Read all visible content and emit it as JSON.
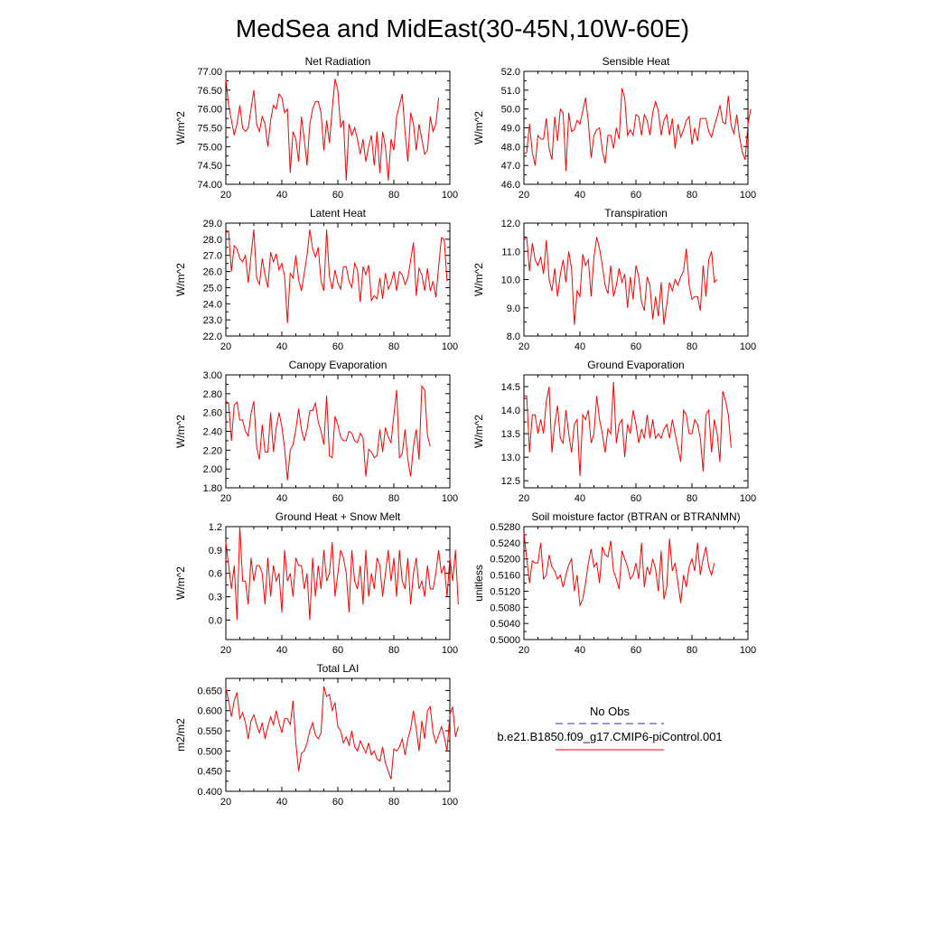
{
  "title": "MedSea and MidEast(30-45N,10W-60E)",
  "colors": {
    "series": "#ff0000",
    "obs": "#2b2bb0",
    "axis": "#000000"
  },
  "legend": {
    "obs_label": "No Obs",
    "model_label": "b.e21.B1850.f09_g17.CMIP6-piControl.001"
  },
  "chart_data": [
    {
      "type": "line",
      "title": "Net Radiation",
      "ylabel": "W/m^2",
      "xlim": [
        20,
        100
      ],
      "xticks": [
        20,
        40,
        60,
        80,
        100
      ],
      "ylim": [
        74.0,
        77.0
      ],
      "yticks": [
        "74.00",
        "74.50",
        "75.00",
        "75.50",
        "76.00",
        "76.50",
        "77.00"
      ],
      "x_start": 20,
      "values": [
        76.8,
        76.1,
        75.7,
        75.3,
        75.6,
        76.1,
        75.5,
        75.4,
        75.5,
        76.0,
        76.5,
        75.6,
        75.4,
        75.8,
        75.6,
        75.0,
        75.7,
        76.1,
        76.0,
        76.4,
        76.3,
        75.9,
        76.0,
        74.3,
        75.4,
        75.2,
        74.6,
        75.8,
        75.2,
        74.5,
        75.6,
        76.0,
        76.2,
        76.2,
        75.9,
        74.9,
        75.7,
        75.1,
        76.0,
        76.8,
        76.5,
        75.5,
        75.7,
        74.1,
        75.6,
        75.3,
        75.5,
        75.2,
        74.8,
        75.2,
        74.6,
        75.0,
        75.3,
        74.5,
        75.4,
        74.3,
        75.4,
        75.0,
        74.1,
        75.2,
        74.9,
        75.8,
        76.1,
        76.4,
        75.4,
        74.6,
        75.9,
        75.6,
        74.9,
        75.6,
        75.2,
        74.8,
        74.9,
        75.8,
        75.4,
        75.6,
        76.3
      ]
    },
    {
      "type": "line",
      "title": "Sensible Heat",
      "ylabel": "W/m^2",
      "xlim": [
        20,
        100
      ],
      "xticks": [
        20,
        40,
        60,
        80,
        100
      ],
      "ylim": [
        46.0,
        52.0
      ],
      "yticks": [
        "46.0",
        "47.0",
        "48.0",
        "49.0",
        "50.0",
        "51.0",
        "52.0"
      ],
      "x_start": 20,
      "values": [
        47.6,
        47.7,
        49.2,
        47.7,
        47.0,
        48.6,
        48.4,
        48.4,
        49.5,
        47.9,
        47.3,
        49.6,
        48.3,
        50.0,
        49.8,
        46.7,
        49.8,
        48.8,
        48.9,
        49.4,
        49.2,
        49.9,
        50.6,
        49.3,
        47.4,
        48.6,
        48.9,
        49.0,
        47.8,
        47.1,
        48.6,
        48.6,
        47.9,
        49.0,
        48.4,
        51.1,
        50.6,
        48.6,
        48.9,
        48.6,
        49.7,
        49.6,
        48.6,
        49.7,
        49.4,
        48.6,
        49.8,
        50.4,
        49.9,
        48.6,
        49.4,
        49.7,
        48.6,
        49.5,
        47.9,
        49.2,
        48.5,
        48.9,
        49.4,
        49.6,
        48.1,
        49.0,
        48.3,
        49.5,
        49.5,
        49.5,
        48.8,
        48.5,
        49.1,
        49.6,
        50.2,
        49.3,
        49.2,
        50.7,
        49.1,
        48.7,
        49.7,
        48.5,
        47.7,
        47.3,
        49.2,
        50.0
      ]
    },
    {
      "type": "line",
      "title": "Latent Heat",
      "ylabel": "W/m^2",
      "xlim": [
        20,
        100
      ],
      "xticks": [
        20,
        40,
        60,
        80,
        100
      ],
      "ylim": [
        22.0,
        29.0
      ],
      "yticks": [
        "22.0",
        "23.0",
        "24.0",
        "25.0",
        "26.0",
        "27.0",
        "28.0",
        "29.0"
      ],
      "x_start": 20,
      "values": [
        28.4,
        28.5,
        26.0,
        27.6,
        27.4,
        26.8,
        26.6,
        27.0,
        25.3,
        27.0,
        28.6,
        25.6,
        25.2,
        26.8,
        25.8,
        25.0,
        27.2,
        26.6,
        27.1,
        26.1,
        26.5,
        25.7,
        22.8,
        25.9,
        25.6,
        27.0,
        25.5,
        24.8,
        25.9,
        27.0,
        28.6,
        27.4,
        26.9,
        27.5,
        25.4,
        24.8,
        28.6,
        25.7,
        24.9,
        26.1,
        25.3,
        24.9,
        26.3,
        26.3,
        25.4,
        25.0,
        26.5,
        26.1,
        24.1,
        26.3,
        25.8,
        26.4,
        24.2,
        24.5,
        24.3,
        25.6,
        24.3,
        25.9,
        24.9,
        25.3,
        26.0,
        24.8,
        26.0,
        25.8,
        25.2,
        25.6,
        26.7,
        27.8,
        24.5,
        26.2,
        25.8,
        24.8,
        26.2,
        24.8,
        25.4,
        24.4,
        26.3,
        28.1,
        28.0,
        25.4
      ]
    },
    {
      "type": "line",
      "title": "Transpiration",
      "ylabel": "W/m^2",
      "xlim": [
        20,
        100
      ],
      "xticks": [
        20,
        40,
        60,
        80,
        100
      ],
      "ylim": [
        8.0,
        12.0
      ],
      "yticks": [
        "8.0",
        "9.0",
        "10.0",
        "11.0",
        "12.0"
      ],
      "x_start": 20,
      "values": [
        11.4,
        11.5,
        10.3,
        11.3,
        10.7,
        10.5,
        10.8,
        10.2,
        11.4,
        10.0,
        9.6,
        10.4,
        9.4,
        10.2,
        10.7,
        9.9,
        11.0,
        10.4,
        8.4,
        9.6,
        9.4,
        10.9,
        10.5,
        10.7,
        9.4,
        10.8,
        11.5,
        11.1,
        10.5,
        9.8,
        9.5,
        10.5,
        9.4,
        9.8,
        10.4,
        9.9,
        10.2,
        9.0,
        10.1,
        9.3,
        10.5,
        10.1,
        9.2,
        8.9,
        10.1,
        9.8,
        8.6,
        9.4,
        8.7,
        9.9,
        8.4,
        9.1,
        9.9,
        9.6,
        10.0,
        9.8,
        10.1,
        10.3,
        11.1,
        9.8,
        9.3,
        9.4,
        9.4,
        8.9,
        10.5,
        9.4,
        10.7,
        11.0,
        9.9,
        10.0
      ]
    },
    {
      "type": "line",
      "title": "Canopy Evaporation",
      "ylabel": "W/m^2",
      "xlim": [
        20,
        100
      ],
      "xticks": [
        20,
        40,
        60,
        80,
        100
      ],
      "ylim": [
        1.8,
        3.0
      ],
      "yticks": [
        "1.80",
        "2.00",
        "2.20",
        "2.40",
        "2.60",
        "2.80",
        "3.00"
      ],
      "x_start": 20,
      "values": [
        2.72,
        2.7,
        2.3,
        2.68,
        2.71,
        2.52,
        2.52,
        2.4,
        2.35,
        2.59,
        2.72,
        2.24,
        2.1,
        2.47,
        2.18,
        2.18,
        2.6,
        2.18,
        2.44,
        2.6,
        2.45,
        2.22,
        1.88,
        2.2,
        2.26,
        2.42,
        2.64,
        2.42,
        2.3,
        2.42,
        2.62,
        2.62,
        2.7,
        2.5,
        2.4,
        2.26,
        2.78,
        2.14,
        2.12,
        2.56,
        2.47,
        2.34,
        2.3,
        2.3,
        2.4,
        2.38,
        2.3,
        2.28,
        2.38,
        2.33,
        1.92,
        2.21,
        2.18,
        2.12,
        2.14,
        2.42,
        2.18,
        2.44,
        2.34,
        2.28,
        2.57,
        2.84,
        2.12,
        2.16,
        2.42,
        2.1,
        1.92,
        2.24,
        2.42,
        2.1,
        2.88,
        2.84,
        2.36,
        2.24
      ]
    },
    {
      "type": "line",
      "title": "Ground Evaporation",
      "ylabel": "W/m^2",
      "xlim": [
        20,
        100
      ],
      "xticks": [
        20,
        40,
        60,
        80,
        100
      ],
      "ylim": [
        12.35,
        14.75
      ],
      "yticks": [
        "12.5",
        "13.0",
        "13.5",
        "14.0",
        "14.5"
      ],
      "x_start": 20,
      "values": [
        14.3,
        14.3,
        13.1,
        13.9,
        13.9,
        13.5,
        13.8,
        13.5,
        14.2,
        14.5,
        13.1,
        13.7,
        14.1,
        13.4,
        13.3,
        14.0,
        13.5,
        13.1,
        13.7,
        13.8,
        12.6,
        13.9,
        13.8,
        14.0,
        13.3,
        13.5,
        14.3,
        13.8,
        13.5,
        13.1,
        13.6,
        13.5,
        14.6,
        13.3,
        13.7,
        13.8,
        13.0,
        13.7,
        13.5,
        14.0,
        13.7,
        13.3,
        13.6,
        13.4,
        13.9,
        13.4,
        13.8,
        13.4,
        13.5,
        13.4,
        13.6,
        13.7,
        13.4,
        13.8,
        13.5,
        13.2,
        12.9,
        14.0,
        13.9,
        13.5,
        13.5,
        13.8,
        13.7,
        13.4,
        12.7,
        13.9,
        14.0,
        13.1,
        13.8,
        13.5,
        12.9,
        14.4,
        14.2,
        13.9,
        13.2
      ]
    },
    {
      "type": "line",
      "title": "Ground Heat + Snow Melt",
      "ylabel": "W/m^2",
      "xlim": [
        20,
        100
      ],
      "xticks": [
        20,
        40,
        60,
        80,
        100
      ],
      "ylim": [
        -0.25,
        1.2
      ],
      "yticks": [
        "0.0",
        "0.3",
        "0.6",
        "0.9",
        "1.2"
      ],
      "x_start": 20,
      "values": [
        1.0,
        0.7,
        0.4,
        0.7,
        0.0,
        1.2,
        0.5,
        0.5,
        0.2,
        0.8,
        0.5,
        0.7,
        0.7,
        0.6,
        0.2,
        0.8,
        0.3,
        0.7,
        0.5,
        0.6,
        0.1,
        0.9,
        0.5,
        0.6,
        0.3,
        0.8,
        0.7,
        0.7,
        0.4,
        0.6,
        0.0,
        0.8,
        0.3,
        0.7,
        0.4,
        0.9,
        0.5,
        0.6,
        1.0,
        0.3,
        0.6,
        0.9,
        0.8,
        0.6,
        0.1,
        0.9,
        0.5,
        0.4,
        0.7,
        0.2,
        0.9,
        0.3,
        0.6,
        0.4,
        0.8,
        0.7,
        0.3,
        0.6,
        0.9,
        0.5,
        0.8,
        0.3,
        0.9,
        0.5,
        0.4,
        0.8,
        0.2,
        0.6,
        0.8,
        0.4,
        0.5,
        0.3,
        0.7,
        0.4,
        0.4,
        0.6,
        0.9,
        0.6,
        0.7,
        0.3,
        0.8,
        0.5,
        0.9,
        0.2
      ]
    },
    {
      "type": "line",
      "title": "Soil moisture factor (BTRAN or BTRANMN)",
      "ylabel": "unitless",
      "xlim": [
        20,
        100
      ],
      "xticks": [
        20,
        40,
        60,
        80,
        100
      ],
      "ylim": [
        0.5,
        0.528
      ],
      "yticks": [
        "0.5000",
        "0.5040",
        "0.5080",
        "0.5120",
        "0.5160",
        "0.5200",
        "0.5240",
        "0.5280"
      ],
      "x_start": 20,
      "values": [
        0.5265,
        0.52,
        0.514,
        0.5195,
        0.519,
        0.519,
        0.524,
        0.515,
        0.516,
        0.521,
        0.518,
        0.517,
        0.515,
        0.516,
        0.513,
        0.516,
        0.5185,
        0.52,
        0.512,
        0.516,
        0.5085,
        0.51,
        0.514,
        0.519,
        0.5225,
        0.518,
        0.519,
        0.514,
        0.523,
        0.521,
        0.5205,
        0.5245,
        0.517,
        0.515,
        0.5125,
        0.522,
        0.52,
        0.518,
        0.515,
        0.516,
        0.519,
        0.515,
        0.524,
        0.513,
        0.518,
        0.516,
        0.52,
        0.5175,
        0.512,
        0.522,
        0.51,
        0.513,
        0.525,
        0.517,
        0.519,
        0.514,
        0.509,
        0.516,
        0.513,
        0.518,
        0.52,
        0.517,
        0.524,
        0.516,
        0.52,
        0.523,
        0.518,
        0.516,
        0.519
      ]
    },
    {
      "type": "line",
      "title": "Total LAI",
      "ylabel": "m2/m2",
      "xlim": [
        20,
        100
      ],
      "xticks": [
        20,
        40,
        60,
        80,
        100
      ],
      "ylim": [
        0.4,
        0.68
      ],
      "yticks": [
        "0.400",
        "0.450",
        "0.500",
        "0.550",
        "0.600",
        "0.650"
      ],
      "x_start": 20,
      "values": [
        0.655,
        0.625,
        0.585,
        0.625,
        0.645,
        0.58,
        0.595,
        0.57,
        0.53,
        0.575,
        0.59,
        0.565,
        0.545,
        0.57,
        0.53,
        0.56,
        0.585,
        0.565,
        0.6,
        0.57,
        0.545,
        0.58,
        0.58,
        0.565,
        0.625,
        0.52,
        0.45,
        0.495,
        0.5,
        0.52,
        0.55,
        0.57,
        0.54,
        0.53,
        0.545,
        0.66,
        0.635,
        0.64,
        0.6,
        0.62,
        0.56,
        0.55,
        0.52,
        0.535,
        0.515,
        0.55,
        0.51,
        0.5,
        0.525,
        0.51,
        0.495,
        0.52,
        0.49,
        0.5,
        0.48,
        0.475,
        0.51,
        0.47,
        0.45,
        0.43,
        0.505,
        0.5,
        0.51,
        0.53,
        0.49,
        0.53,
        0.555,
        0.6,
        0.555,
        0.5,
        0.575,
        0.53,
        0.6,
        0.61,
        0.545,
        0.52,
        0.54,
        0.56,
        0.535,
        0.5,
        0.59,
        0.61,
        0.535,
        0.56
      ]
    }
  ]
}
